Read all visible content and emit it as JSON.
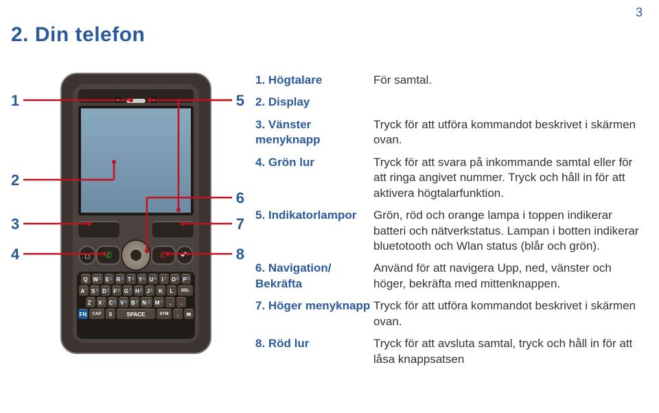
{
  "page_number": "3",
  "title": "2.  Din telefon",
  "title_color": "#2a5a9a",
  "text_color": "#333333",
  "error_color": "#c4101c",
  "background_color": "#ffffff",
  "callouts": {
    "left": [
      "1",
      "2",
      "3",
      "4"
    ],
    "right": [
      "5",
      "6",
      "7",
      "8"
    ]
  },
  "legend": [
    {
      "term": "1. Högtalare",
      "def": "För samtal."
    },
    {
      "term": "2. Display",
      "def": ""
    },
    {
      "term": "3. Vänster menyknapp",
      "def": "Tryck för att utföra kommandot beskrivet i skärmen ovan."
    },
    {
      "term": "4. Grön lur",
      "def": "Tryck för att svara på inkommande samtal eller för att ringa angivet nummer. Tryck och håll in för att aktivera högtalarfunktion."
    },
    {
      "term": "5. Indikatorlampor",
      "def": "Grön, röd och orange lampa i toppen indikerar batteri och nätverkstatus. Lampan i botten indikerar bluetotooth och Wlan status (blår och grön)."
    },
    {
      "term": "6. Navigation/ Bekräfta",
      "def": "Använd för att navigera Upp, ned, vänster och höger, bekräfta med mittenknappen."
    },
    {
      "term": "7. Höger menyknapp",
      "def": "Tryck för att utföra kommandot beskrivet i skärmen ovan."
    },
    {
      "term": "8. Röd lur",
      "def": "Tryck för att avsluta samtal, tryck och håll in för att låsa knappsatsen"
    }
  ],
  "keyboard": {
    "row1": [
      "Q",
      "W",
      "E",
      "R",
      "T",
      "Y",
      "U",
      "I",
      "O",
      "P"
    ],
    "row1_sup": [
      "",
      "1",
      "2",
      "3",
      "4",
      "5",
      "6",
      "7",
      "8",
      "9"
    ],
    "row2": [
      "A",
      "S",
      "D",
      "F",
      "G",
      "H",
      "J",
      "K",
      "L",
      "DEL"
    ],
    "row2_sup": [
      "*",
      "4",
      "5",
      "6",
      "7",
      "8",
      "$",
      "",
      "",
      ""
    ],
    "row3": [
      "Z",
      "X",
      "C",
      "V",
      "B",
      "N",
      "M",
      ",",
      "."
    ],
    "row3_sup": [
      "*",
      "7",
      "8",
      "9",
      "0",
      "@",
      "?",
      "",
      ""
    ]
  }
}
